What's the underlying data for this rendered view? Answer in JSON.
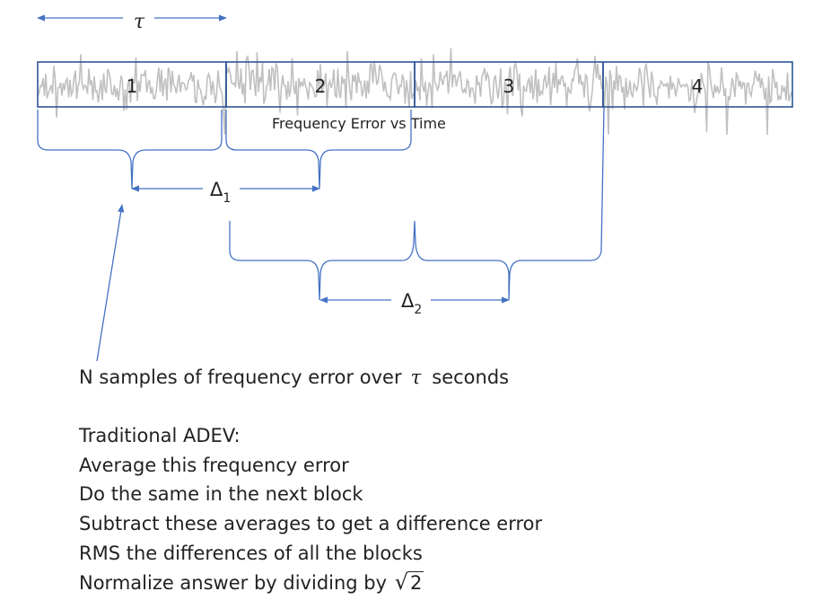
{
  "diagram": {
    "tau_symbol": "τ",
    "caption": "Frequency Error vs Time",
    "blocks": [
      "1",
      "2",
      "3",
      "4"
    ],
    "delta1_label": "Δ",
    "delta1_sub": "1",
    "delta2_label": "Δ",
    "delta2_sub": "2"
  },
  "notes": {
    "samples_prefix": "N samples of frequency error over",
    "samples_tau": "τ",
    "samples_suffix": "seconds",
    "heading": "Traditional ADEV:",
    "step1": "Average this frequency error",
    "step2": "Do the same in the next block",
    "step3": "Subtract these averages to get a difference error",
    "step4": "RMS the differences of all the blocks",
    "step5_prefix": "Normalize answer by dividing by",
    "step5_sqrt_arg": "2"
  },
  "colors": {
    "signal": "#c0c0c0",
    "block_border": "#2f5597",
    "arrow": "#4472c4",
    "text": "#222222"
  }
}
